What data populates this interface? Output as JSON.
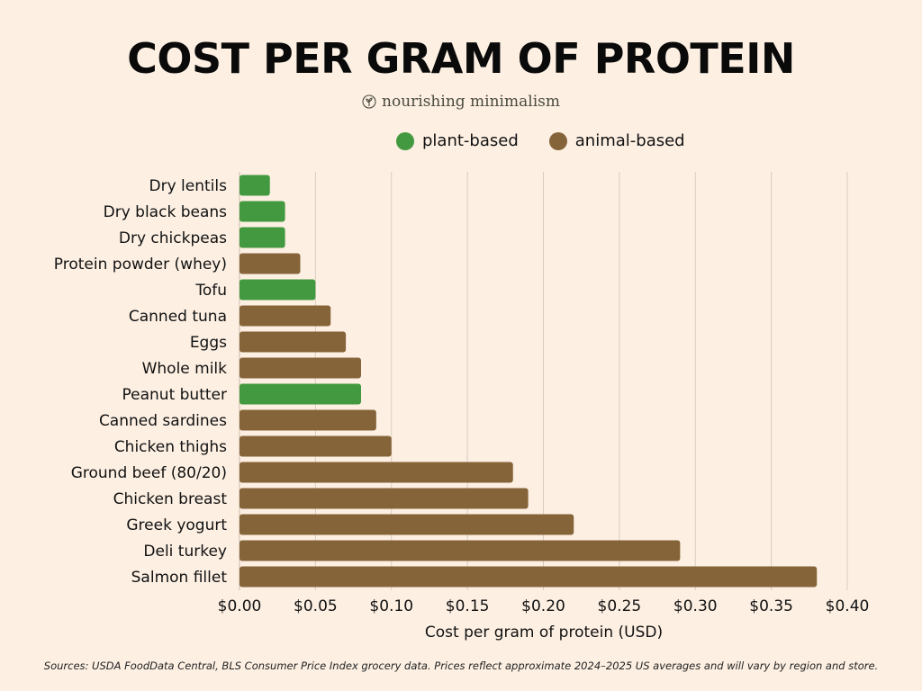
{
  "header": {
    "title": "COST PER GRAM OF PROTEIN",
    "brand": "nourishing minimalism"
  },
  "legend": {
    "items": [
      {
        "label": "plant-based",
        "color": "#43993f"
      },
      {
        "label": "animal-based",
        "color": "#86643a"
      }
    ]
  },
  "footnote": "Sources: USDA FoodData Central, BLS Consumer Price Index grocery data. Prices reflect approximate 2024–2025 US averages and will vary by region and store.",
  "chart_data": {
    "type": "bar",
    "orientation": "horizontal",
    "title": "COST PER GRAM OF PROTEIN",
    "xlabel": "Cost per gram of protein (USD)",
    "ylabel": "",
    "xlim": [
      0,
      0.4
    ],
    "ticks": [
      "$0.00",
      "$0.05",
      "$0.10",
      "$0.15",
      "$0.20",
      "$0.25",
      "$0.30",
      "$0.35",
      "$0.40"
    ],
    "grid": true,
    "legend_position": "top-right",
    "categories": [
      "Dry lentils",
      "Dry black beans",
      "Dry chickpeas",
      "Protein powder (whey)",
      "Tofu",
      "Canned tuna",
      "Eggs",
      "Whole milk",
      "Peanut butter",
      "Canned sardines",
      "Chicken thighs",
      "Ground beef (80/20)",
      "Chicken breast",
      "Greek yogurt",
      "Deli turkey",
      "Salmon fillet"
    ],
    "values": [
      0.02,
      0.03,
      0.03,
      0.04,
      0.05,
      0.06,
      0.07,
      0.08,
      0.08,
      0.09,
      0.1,
      0.18,
      0.19,
      0.22,
      0.29,
      0.38
    ],
    "groups": [
      "plant-based",
      "plant-based",
      "plant-based",
      "animal-based",
      "plant-based",
      "animal-based",
      "animal-based",
      "animal-based",
      "plant-based",
      "animal-based",
      "animal-based",
      "animal-based",
      "animal-based",
      "animal-based",
      "animal-based",
      "animal-based"
    ],
    "colors": {
      "plant-based": "#43993f",
      "animal-based": "#86643a",
      "grid": "#d9cdc0"
    }
  }
}
